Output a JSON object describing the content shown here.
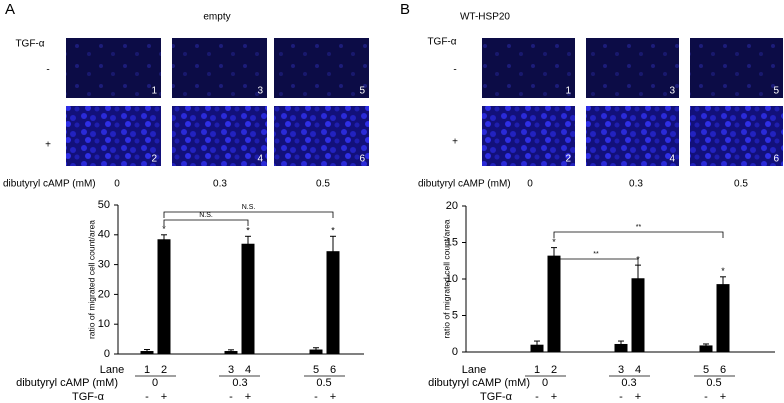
{
  "panels": [
    {
      "letter": "A",
      "title": "empty",
      "row_label": "TGF-α",
      "rows": [
        {
          "sign": "-",
          "images": [
            "1",
            "3",
            "5"
          ]
        },
        {
          "sign": "+",
          "images": [
            "2",
            "4",
            "6"
          ]
        }
      ],
      "dose_label": "dibutyryl cAMP (mM)",
      "doses": [
        "0",
        "0.3",
        "0.5"
      ],
      "table": {
        "lane_label": "Lane",
        "dose_label": "dibutyryl cAMP (mM)",
        "tgf_label": "TGF-α",
        "tgf": [
          "-",
          "+",
          "-",
          "+",
          "-",
          "+"
        ]
      }
    },
    {
      "letter": "B",
      "title": "WT-HSP20",
      "row_label": "TGF-α",
      "rows": [
        {
          "sign": "-",
          "images": [
            "1",
            "3",
            "5"
          ]
        },
        {
          "sign": "+",
          "images": [
            "2",
            "4",
            "6"
          ]
        }
      ],
      "dose_label": "dibutyryl cAMP (mM)",
      "doses": [
        "0",
        "0.3",
        "0.5"
      ],
      "table": {
        "lane_label": "Lane",
        "dose_label": "dibutyryl cAMP (mM)",
        "tgf_label": "TGF-α",
        "tgf": [
          "-",
          "+",
          "-",
          "+",
          "-",
          "+"
        ]
      }
    }
  ],
  "chart_data": [
    {
      "type": "bar",
      "ylabel": "ratio of migrated cell count/area",
      "categories": [
        "1",
        "2",
        "3",
        "4",
        "5",
        "6"
      ],
      "values": [
        1.0,
        38.5,
        1.0,
        37.0,
        1.5,
        34.5
      ],
      "errors": [
        0.5,
        1.5,
        0.4,
        2.5,
        0.6,
        5.0
      ],
      "color": "#000000",
      "ylim": [
        0,
        50
      ],
      "yticks": [
        0,
        10,
        20,
        30,
        40,
        50
      ],
      "markers": [
        null,
        "*",
        null,
        "*",
        null,
        "*"
      ],
      "brackets": [
        {
          "label": "N.S.",
          "from": "2",
          "to": "4"
        },
        {
          "label": "N.S.",
          "from": "2",
          "to": "6"
        }
      ]
    },
    {
      "type": "bar",
      "ylabel": "ratio of migrated cell count/area",
      "categories": [
        "1",
        "2",
        "3",
        "4",
        "5",
        "6"
      ],
      "values": [
        1.0,
        13.2,
        1.1,
        10.1,
        0.9,
        9.3
      ],
      "errors": [
        0.5,
        1.1,
        0.4,
        1.8,
        0.2,
        1.0
      ],
      "color": "#000000",
      "ylim": [
        0,
        20
      ],
      "yticks": [
        0,
        5,
        10,
        15,
        20
      ],
      "markers": [
        null,
        "*",
        null,
        "*",
        null,
        "*"
      ],
      "brackets": [
        {
          "label": "**",
          "from": "2",
          "to": "4"
        },
        {
          "label": "**",
          "from": "2",
          "to": "6"
        }
      ]
    }
  ]
}
